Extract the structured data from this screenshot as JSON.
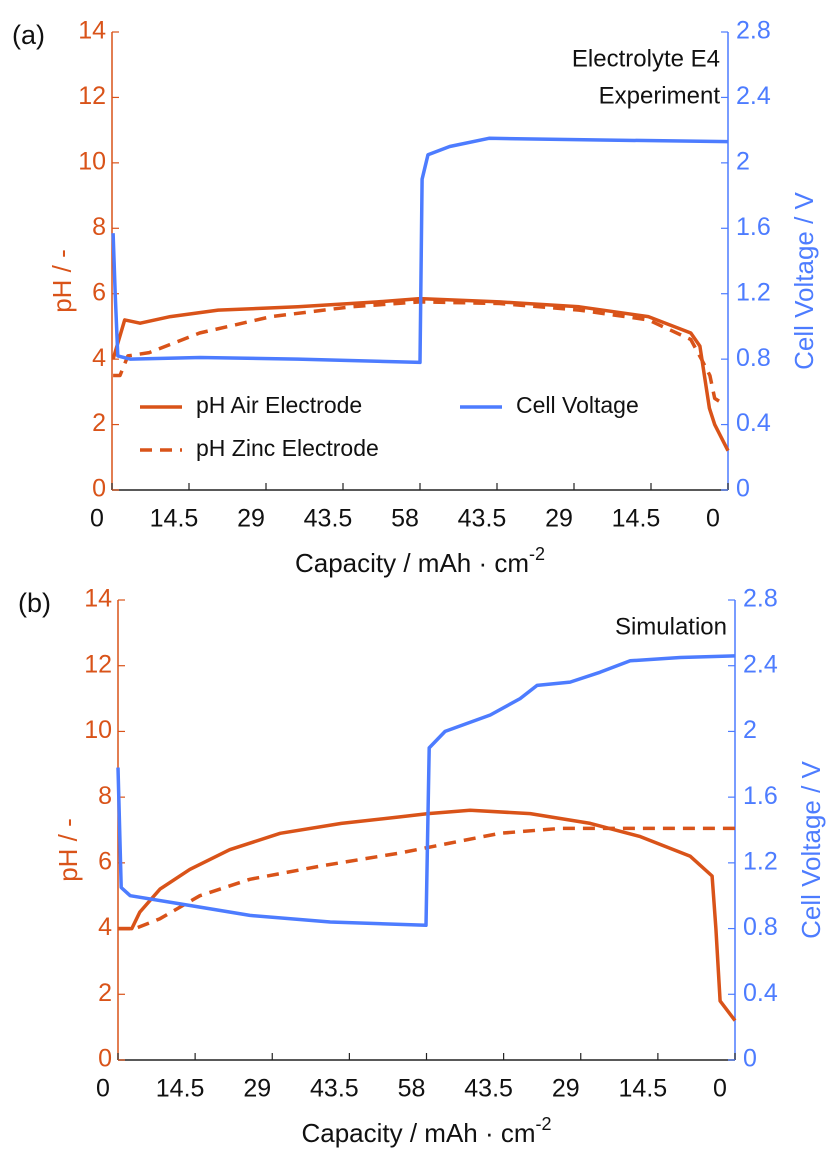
{
  "chart_data": [
    {
      "type": "line",
      "panel": "(a)",
      "annotations": [
        "Electrolyte E4",
        "Experiment"
      ],
      "xlabel": "Capacity /  mAh · cm",
      "xlabel_sup": "-2",
      "ylabel": "pH  /  -",
      "y2label": "Cell Voltage  /  V",
      "xlim": [
        0,
        116
      ],
      "xticks": [
        0,
        14.5,
        29,
        43.5,
        58,
        {
          "value": 72.5,
          "label": "43.5"
        },
        {
          "value": 87,
          "label": "29"
        },
        {
          "value": 101.5,
          "label": "14.5"
        },
        {
          "value": 116,
          "label": "0"
        }
      ],
      "ylim": [
        0,
        14
      ],
      "yticks": [
        0,
        2,
        4,
        6,
        8,
        10,
        12,
        14
      ],
      "y2lim": [
        0,
        2.8
      ],
      "y2ticks": [
        0,
        0.4,
        0.8,
        1.2,
        1.6,
        2,
        2.4,
        2.8
      ],
      "legend": "lower left",
      "series": [
        {
          "name": "pH Air Electrode",
          "color": "#d95319",
          "dash": false,
          "x": [
            0.2,
            2.4,
            5.3,
            11,
            20,
            35,
            50,
            58,
            73,
            88,
            101,
            109,
            110.7,
            112.5,
            113.5,
            116
          ],
          "values": [
            4,
            5.2,
            5.1,
            5.3,
            5.5,
            5.6,
            5.75,
            5.85,
            5.75,
            5.6,
            5.3,
            4.8,
            4.4,
            2.5,
            2,
            1.2
          ]
        },
        {
          "name": "pH Zinc Electrode",
          "color": "#d95319",
          "dash": true,
          "x": [
            0.2,
            1.5,
            3,
            7,
            16.5,
            30,
            45,
            58,
            73,
            88,
            101,
            109,
            111,
            112.6,
            113.5,
            114.5
          ],
          "values": [
            3.5,
            3.5,
            4.1,
            4.2,
            4.8,
            5.3,
            5.6,
            5.75,
            5.7,
            5.5,
            5.2,
            4.6,
            4,
            3.5,
            2.8,
            2.7
          ]
        },
        {
          "name": "Cell Voltage",
          "color": "#4d7cff",
          "dash": false,
          "axis": "y2",
          "x": [
            0.2,
            0.6,
            1.1,
            3.4,
            16.6,
            35,
            58,
            58.4,
            59.5,
            63.6,
            71,
            92,
            116
          ],
          "values": [
            1.57,
            1.2,
            0.82,
            0.8,
            0.81,
            0.8,
            0.78,
            1.9,
            2.05,
            2.1,
            2.15,
            2.14,
            2.13
          ]
        }
      ]
    },
    {
      "type": "line",
      "panel": "(b)",
      "annotations": [
        "Simulation"
      ],
      "xlabel": "Capacity /  mAh · cm",
      "xlabel_sup": "-2",
      "ylabel": "pH  /  -",
      "y2label": "Cell Voltage  /  V",
      "xlim": [
        0,
        116
      ],
      "xticks": [
        0,
        14.5,
        29,
        43.5,
        58,
        {
          "value": 72.5,
          "label": "43.5"
        },
        {
          "value": 87,
          "label": "29"
        },
        {
          "value": 101.5,
          "label": "14.5"
        },
        {
          "value": 116,
          "label": "0"
        }
      ],
      "ylim": [
        0,
        14
      ],
      "yticks": [
        0,
        2,
        4,
        6,
        8,
        10,
        12,
        14
      ],
      "y2lim": [
        0,
        2.8
      ],
      "y2ticks": [
        0,
        0.4,
        0.8,
        1.2,
        1.6,
        2,
        2.4,
        2.8
      ],
      "series": [
        {
          "color": "#d95319",
          "dash": false,
          "x": [
            0,
            2.6,
            4.1,
            7.9,
            13.5,
            21,
            30.5,
            42,
            53,
            58.3,
            66.2,
            77.5,
            88.8,
            98.2,
            107.6,
            111.7,
            112.4,
            113.2,
            116
          ],
          "values": [
            4,
            4,
            4.5,
            5.2,
            5.8,
            6.4,
            6.9,
            7.2,
            7.4,
            7.5,
            7.6,
            7.5,
            7.2,
            6.8,
            6.2,
            5.6,
            4,
            1.8,
            1.2
          ]
        },
        {
          "color": "#d95319",
          "dash": true,
          "x": [
            0,
            3.2,
            7.9,
            15.4,
            24.8,
            38,
            53,
            62.4,
            71.8,
            83.1,
            116
          ],
          "values": [
            4,
            4,
            4.3,
            5,
            5.5,
            5.9,
            6.3,
            6.6,
            6.9,
            7.05,
            7.05
          ]
        },
        {
          "color": "#4d7cff",
          "dash": false,
          "axis": "y2",
          "x": [
            0,
            0.6,
            2.3,
            11.7,
            24.8,
            39.9,
            57.9,
            58.5,
            61.5,
            70,
            75.6,
            78.8,
            85,
            90.6,
            96.3,
            105.7,
            116
          ],
          "values": [
            1.78,
            1.05,
            1,
            0.95,
            0.88,
            0.84,
            0.82,
            1.9,
            2,
            2.1,
            2.2,
            2.28,
            2.3,
            2.36,
            2.43,
            2.45,
            2.46
          ]
        }
      ]
    }
  ]
}
